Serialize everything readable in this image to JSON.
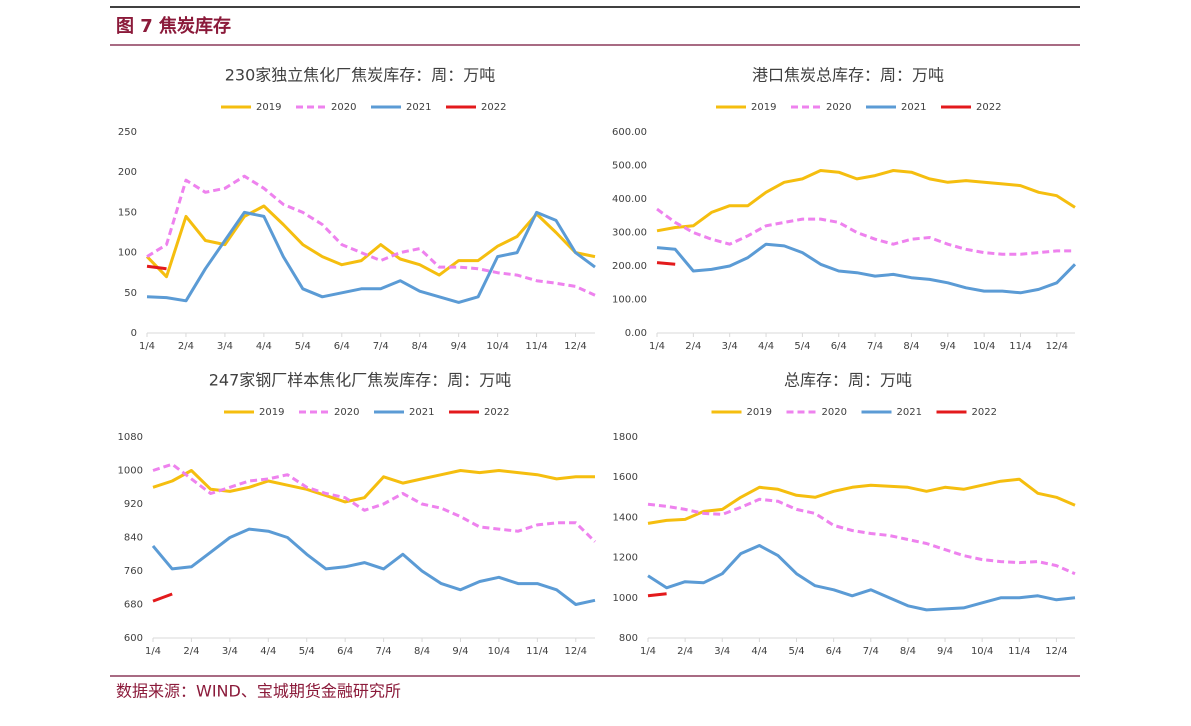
{
  "header": "图 7 焦炭库存",
  "source": "数据来源：WIND、宝城期货金融研究所",
  "chart_data": [
    {
      "type": "line",
      "title": "230家独立焦化厂焦炭库存：周：万吨",
      "categories": [
        "1/4",
        null,
        "2/4",
        null,
        "3/4",
        null,
        "4/4",
        null,
        "5/4",
        null,
        "6/4",
        null,
        "7/4",
        null,
        "8/4",
        null,
        "9/4",
        null,
        "10/4",
        null,
        "11/4",
        null,
        "12/4",
        null
      ],
      "ylim": [
        0,
        250
      ],
      "yticks": [
        0,
        50,
        100,
        150,
        200,
        250
      ],
      "series": [
        {
          "name": "2019",
          "color": "#f5be0f",
          "values": [
            95,
            70,
            145,
            115,
            110,
            145,
            158,
            135,
            110,
            95,
            85,
            90,
            110,
            92,
            85,
            72,
            90,
            90,
            108,
            120,
            148,
            125,
            100,
            95
          ]
        },
        {
          "name": "2020",
          "color": "#ee82ee",
          "dashed": true,
          "values": [
            95,
            110,
            190,
            175,
            180,
            195,
            180,
            160,
            150,
            135,
            110,
            100,
            90,
            100,
            105,
            82,
            82,
            80,
            75,
            72,
            65,
            62,
            58,
            47
          ]
        },
        {
          "name": "2021",
          "color": "#5b9bd5",
          "values": [
            45,
            44,
            40,
            80,
            115,
            150,
            145,
            95,
            55,
            45,
            50,
            55,
            55,
            65,
            52,
            45,
            38,
            45,
            95,
            100,
            150,
            140,
            100,
            82
          ]
        },
        {
          "name": "2022",
          "color": "#e31a1c",
          "values": [
            83,
            80,
            null,
            null,
            null,
            null,
            null,
            null,
            null,
            null,
            null,
            null,
            null,
            null,
            null,
            null,
            null,
            null,
            null,
            null,
            null,
            null,
            null,
            null
          ]
        }
      ]
    },
    {
      "type": "line",
      "title": "港口焦炭总库存：周：万吨",
      "categories": [
        "1/4",
        null,
        "2/4",
        null,
        "3/4",
        null,
        "4/4",
        null,
        "5/4",
        null,
        "6/4",
        null,
        "7/4",
        null,
        "8/4",
        null,
        "9/4",
        null,
        "10/4",
        null,
        "11/4",
        null,
        "12/4",
        null
      ],
      "ylim": [
        0,
        600
      ],
      "yticks": [
        {
          "value": 0,
          "label": "0.00"
        },
        {
          "value": 100,
          "label": "100.00"
        },
        {
          "value": 200,
          "label": "200.00"
        },
        {
          "value": 300,
          "label": "300.00"
        },
        {
          "value": 400,
          "label": "400.00"
        },
        {
          "value": 500,
          "label": "500.00"
        },
        {
          "value": 600,
          "label": "600.00"
        }
      ],
      "series": [
        {
          "name": "2019",
          "color": "#f5be0f",
          "values": [
            305,
            315,
            320,
            360,
            380,
            380,
            420,
            450,
            460,
            485,
            480,
            460,
            470,
            485,
            480,
            460,
            450,
            455,
            450,
            445,
            440,
            420,
            410,
            375
          ]
        },
        {
          "name": "2020",
          "color": "#ee82ee",
          "dashed": true,
          "values": [
            370,
            330,
            300,
            280,
            265,
            290,
            320,
            330,
            340,
            340,
            330,
            300,
            280,
            265,
            280,
            285,
            265,
            250,
            240,
            235,
            235,
            240,
            245,
            245
          ]
        },
        {
          "name": "2021",
          "color": "#5b9bd5",
          "values": [
            255,
            250,
            185,
            190,
            200,
            225,
            265,
            260,
            240,
            205,
            185,
            180,
            170,
            175,
            165,
            160,
            150,
            135,
            125,
            125,
            120,
            130,
            150,
            205
          ]
        },
        {
          "name": "2022",
          "color": "#e31a1c",
          "values": [
            210,
            205,
            null,
            null,
            null,
            null,
            null,
            null,
            null,
            null,
            null,
            null,
            null,
            null,
            null,
            null,
            null,
            null,
            null,
            null,
            null,
            null,
            null,
            null
          ]
        }
      ]
    },
    {
      "type": "line",
      "title": "247家钢厂样本焦化厂焦炭库存：周：万吨",
      "categories": [
        "1/4",
        null,
        "2/4",
        null,
        "3/4",
        null,
        "4/4",
        null,
        "5/4",
        null,
        "6/4",
        null,
        "7/4",
        null,
        "8/4",
        null,
        "9/4",
        null,
        "10/4",
        null,
        "11/4",
        null,
        "12/4",
        null
      ],
      "ylim": [
        600,
        1080
      ],
      "yticks": [
        600,
        680,
        760,
        840,
        920,
        1000,
        1080
      ],
      "series": [
        {
          "name": "2019",
          "color": "#f5be0f",
          "values": [
            960,
            975,
            1000,
            955,
            950,
            960,
            975,
            965,
            955,
            940,
            925,
            935,
            985,
            970,
            980,
            990,
            1000,
            995,
            1000,
            995,
            990,
            980,
            985,
            985
          ]
        },
        {
          "name": "2020",
          "color": "#ee82ee",
          "dashed": true,
          "values": [
            1000,
            1015,
            980,
            945,
            960,
            975,
            980,
            990,
            960,
            945,
            935,
            905,
            920,
            945,
            920,
            910,
            890,
            865,
            860,
            855,
            870,
            875,
            875,
            830
          ]
        },
        {
          "name": "2021",
          "color": "#5b9bd5",
          "values": [
            820,
            765,
            770,
            805,
            840,
            860,
            855,
            840,
            800,
            765,
            770,
            780,
            765,
            800,
            760,
            730,
            715,
            735,
            745,
            730,
            730,
            715,
            680,
            690
          ]
        },
        {
          "name": "2022",
          "color": "#e31a1c",
          "values": [
            688,
            705,
            null,
            null,
            null,
            null,
            null,
            null,
            null,
            null,
            null,
            null,
            null,
            null,
            null,
            null,
            null,
            null,
            null,
            null,
            null,
            null,
            null,
            null
          ]
        }
      ]
    },
    {
      "type": "line",
      "title": "总库存：周：万吨",
      "categories": [
        "1/4",
        null,
        "2/4",
        null,
        "3/4",
        null,
        "4/4",
        null,
        "5/4",
        null,
        "6/4",
        null,
        "7/4",
        null,
        "8/4",
        null,
        "9/4",
        null,
        "10/4",
        null,
        "11/4",
        null,
        "12/4",
        null
      ],
      "ylim": [
        800,
        1800
      ],
      "yticks": [
        800,
        1000,
        1200,
        1400,
        1600,
        1800
      ],
      "series": [
        {
          "name": "2019",
          "color": "#f5be0f",
          "values": [
            1370,
            1385,
            1390,
            1430,
            1440,
            1500,
            1550,
            1540,
            1510,
            1500,
            1530,
            1550,
            1560,
            1555,
            1550,
            1530,
            1550,
            1540,
            1560,
            1580,
            1590,
            1520,
            1500,
            1460
          ]
        },
        {
          "name": "2020",
          "color": "#ee82ee",
          "dashed": true,
          "values": [
            1465,
            1455,
            1440,
            1420,
            1415,
            1450,
            1490,
            1480,
            1440,
            1420,
            1360,
            1335,
            1320,
            1310,
            1290,
            1270,
            1240,
            1210,
            1190,
            1180,
            1175,
            1180,
            1160,
            1120
          ]
        },
        {
          "name": "2021",
          "color": "#5b9bd5",
          "values": [
            1110,
            1050,
            1080,
            1075,
            1120,
            1220,
            1260,
            1210,
            1120,
            1060,
            1040,
            1010,
            1040,
            1000,
            960,
            940,
            945,
            950,
            975,
            1000,
            1000,
            1010,
            990,
            1000
          ]
        },
        {
          "name": "2022",
          "color": "#e31a1c",
          "values": [
            1010,
            1020,
            null,
            null,
            null,
            null,
            null,
            null,
            null,
            null,
            null,
            null,
            null,
            null,
            null,
            null,
            null,
            null,
            null,
            null,
            null,
            null,
            null,
            null
          ]
        }
      ]
    }
  ]
}
